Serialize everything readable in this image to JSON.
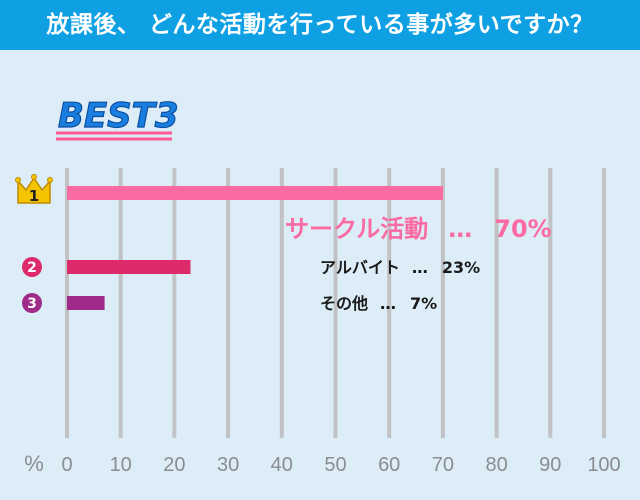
{
  "header": {
    "title": "放課後、 どんな活動を行っている事が多いですか？"
  },
  "badge": {
    "text": "BEST3"
  },
  "colors": {
    "background": "#dcedf7",
    "header": "#0fa0e4",
    "grid": "#c0c2c4",
    "tick": "#8a8d90",
    "rank1": "#fa6aa3",
    "rank2": "#dd2a6a",
    "rank3": "#a02a8a",
    "badge": "#1a7ee0"
  },
  "chart_data": {
    "type": "bar",
    "orientation": "horizontal",
    "title": "放課後、 どんな活動を行っている事が多いですか？",
    "unit_label": "%",
    "xlim": [
      0,
      100
    ],
    "xticks": [
      0,
      10,
      20,
      30,
      40,
      50,
      60,
      70,
      80,
      90,
      100
    ],
    "grid": true,
    "bars": [
      {
        "rank": "1",
        "category": "サークル活動",
        "value": 70,
        "value_label": "70%",
        "separator": "…"
      },
      {
        "rank": "2",
        "category": "アルバイト",
        "value": 23,
        "value_label": "23%",
        "separator": "…"
      },
      {
        "rank": "3",
        "category": "その他",
        "value": 7,
        "value_label": "7%",
        "separator": "…"
      }
    ]
  }
}
